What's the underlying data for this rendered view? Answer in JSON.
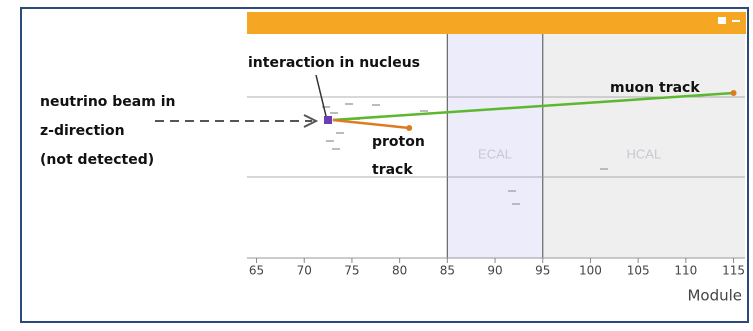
{
  "chart_data": {
    "type": "event-display",
    "xlabel": "Module",
    "xlim": [
      64,
      116.2
    ],
    "xticks": [
      65,
      70,
      75,
      80,
      85,
      90,
      95,
      100,
      105,
      110,
      115
    ],
    "regions": [
      {
        "name": "ECAL",
        "x": [
          85,
          95
        ],
        "color": "#ececfb"
      },
      {
        "name": "HCAL",
        "x": [
          95,
          115
        ],
        "color": "#efefef"
      }
    ],
    "tracks": [
      {
        "x": [
          73,
          115
        ],
        "color": "#5cb82e"
      },
      {
        "x": [
          73,
          81
        ],
        "color": "#e07a20"
      }
    ],
    "annotations": [
      "interaction in nucleus",
      "neutrino beam in",
      "z-direction",
      "(not detected)",
      "proton",
      "track",
      "muon track"
    ]
  }
}
